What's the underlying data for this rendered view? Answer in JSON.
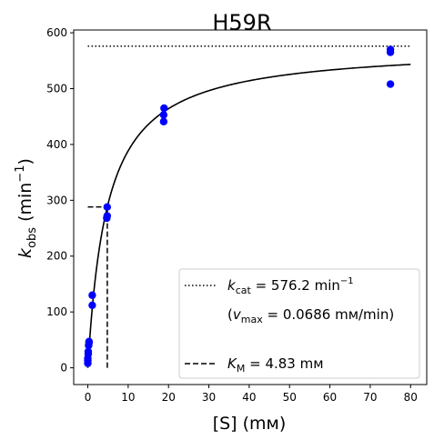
{
  "chart_data": {
    "type": "scatter",
    "title": "H59R",
    "xlabel": "[S] (mм)",
    "ylabel": "k_obs (min⁻¹)",
    "xlim": [
      -3.5,
      84
    ],
    "ylim": [
      -30,
      605
    ],
    "xticks": [
      0,
      10,
      20,
      30,
      40,
      50,
      60,
      70,
      80
    ],
    "yticks": [
      0,
      100,
      200,
      300,
      400,
      500,
      600
    ],
    "grid": false,
    "legend_position": "lower right",
    "points": {
      "color": "#0000ff",
      "x": [
        0.0,
        0.0,
        0.0,
        0.1,
        0.1,
        0.2,
        0.3,
        0.3,
        1.1,
        1.1,
        4.7,
        4.8,
        4.8,
        18.8,
        18.8,
        18.9,
        75.0,
        75.0,
        75.0
      ],
      "y": [
        8,
        13,
        17,
        25,
        29,
        40,
        45,
        47,
        112,
        130,
        268,
        272,
        288,
        441,
        453,
        465,
        508,
        565,
        570
      ]
    },
    "fit_curve": {
      "kcat": 576.2,
      "KM": 4.83,
      "x_range": [
        0,
        80
      ],
      "color": "#000000"
    },
    "kcat_line": {
      "y": 576.2,
      "x_range": [
        0,
        80
      ]
    },
    "km_line": {
      "x": 4.83,
      "y": 288.1
    },
    "legend": {
      "kcat_sym": "k",
      "kcat_sub": "cat",
      "kcat_value": " = 576.2 min",
      "kcat_sup": "−1",
      "vmax_open": "(",
      "vmax_sym": "v",
      "vmax_sub": "max",
      "vmax_value": " = 0.0686 mм/min)",
      "km_sym": "K",
      "km_sub": "M",
      "km_value": " = 4.83 mм"
    }
  }
}
